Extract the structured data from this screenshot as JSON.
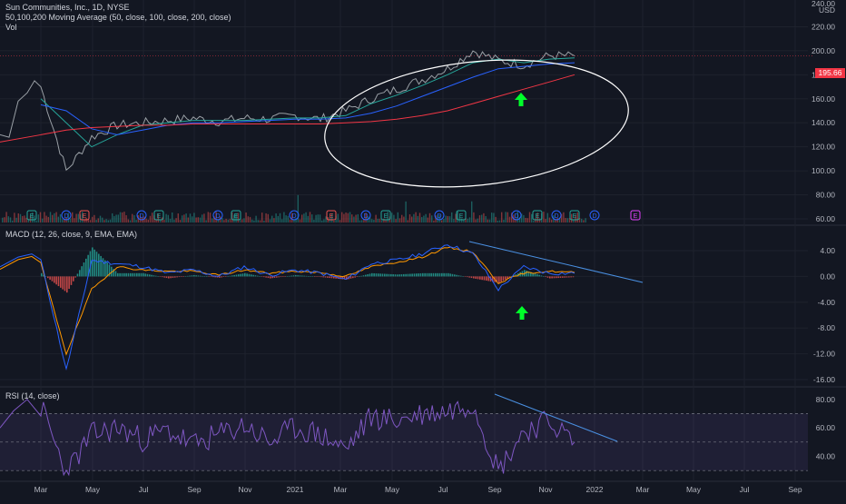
{
  "legend": {
    "title": "Sun Communities, Inc., 1D, NYSE",
    "ma": "50,100,200 Moving Average (50, close, 100, close, 200, close)",
    "vol": "Vol",
    "macd": "MACD (12, 26, close, 9, EMA, EMA)",
    "rsi": "RSI (14, close)"
  },
  "price_axis": {
    "top_label": "240.00",
    "currency": "USD",
    "ticks": [
      "220.00",
      "200.00",
      "180.00",
      "160.00",
      "140.00",
      "120.00",
      "100.00",
      "80.00",
      "60.00"
    ],
    "last_price": "195.66"
  },
  "macd_axis": {
    "ticks": [
      "4.00",
      "0.00",
      "-4.00",
      "-8.00",
      "-12.00",
      "-16.00"
    ]
  },
  "rsi_axis": {
    "ticks": [
      "80.00",
      "60.00",
      "40.00"
    ]
  },
  "time_axis": {
    "labels": [
      "Mar",
      "May",
      "Jul",
      "Sep",
      "Nov",
      "2021",
      "Mar",
      "May",
      "Jul",
      "Sep",
      "Nov",
      "2022",
      "Mar",
      "May",
      "Jul",
      "Sep"
    ]
  },
  "events": [
    "E",
    "D",
    "E",
    "D",
    "E",
    "D",
    "E",
    "D",
    "E",
    "D",
    "E",
    "D",
    "E",
    "D",
    "E",
    "D",
    "E",
    "D",
    "E"
  ],
  "colors": {
    "background": "#131722",
    "price_line": "#9aa0a6",
    "ma50": "#26a69a",
    "ma100": "#2962ff",
    "ma200": "#f23645",
    "macd_line": "#2962ff",
    "signal_line": "#ff9800",
    "hist_up": "#26a69a",
    "hist_down": "#ef5350",
    "rsi_line": "#7e57c2",
    "trendline": "#4a90e2",
    "annotation_arrow": "#00ff2a",
    "ellipse": "#ffffff",
    "last_price_tag": "#f23645"
  },
  "chart_data": [
    {
      "type": "line",
      "title": "Sun Communities, Inc., 1D, NYSE",
      "ylim": [
        60,
        240
      ],
      "x_range": [
        "2020-03",
        "2022-09"
      ],
      "x": [
        "Mar 2020",
        "Apr 2020",
        "May 2020",
        "Jun 2020",
        "Jul 2020",
        "Aug 2020",
        "Sep 2020",
        "Oct 2020",
        "Nov 2020",
        "Dec 2020",
        "Jan 2021",
        "Feb 2021",
        "Mar 2021",
        "Apr 2021",
        "May 2021",
        "Jun 2021",
        "Jul 2021",
        "Aug 2021",
        "Sep 2021",
        "Oct 2021",
        "Nov 2021",
        "Dec 2021"
      ],
      "series": [
        {
          "name": "Close",
          "values": [
            170,
            100,
            128,
            138,
            140,
            142,
            144,
            141,
            144,
            143,
            146,
            143,
            150,
            160,
            168,
            176,
            185,
            200,
            192,
            188,
            196,
            195.66
          ]
        },
        {
          "name": "MA50",
          "values": [
            160,
            140,
            120,
            130,
            138,
            140,
            142,
            142,
            142,
            143,
            144,
            144,
            146,
            156,
            163,
            171,
            180,
            190,
            193,
            190,
            193,
            194
          ]
        },
        {
          "name": "MA100",
          "values": [
            155,
            150,
            135,
            130,
            134,
            138,
            140,
            140,
            141,
            142,
            143,
            143,
            144,
            148,
            154,
            162,
            170,
            178,
            185,
            187,
            189,
            190
          ]
        },
        {
          "name": "MA200",
          "values": [
            130,
            134,
            136,
            137,
            138,
            138,
            139,
            139,
            139,
            139,
            139,
            139,
            140,
            141,
            143,
            146,
            150,
            156,
            162,
            168,
            174,
            180
          ]
        }
      ],
      "grid": true,
      "annotations": [
        "ellipse around 2021 rally",
        "green up arrow near Oct 2021",
        "last price tag 195.66"
      ]
    },
    {
      "type": "line",
      "title": "MACD (12, 26, close, 9, EMA, EMA)",
      "ylim": [
        -16,
        4
      ],
      "x": [
        "Mar 2020",
        "Apr 2020",
        "May 2020",
        "Jun 2020",
        "Jul 2020",
        "Aug 2020",
        "Sep 2020",
        "Oct 2020",
        "Nov 2020",
        "Dec 2020",
        "Jan 2021",
        "Feb 2021",
        "Mar 2021",
        "Apr 2021",
        "May 2021",
        "Jun 2021",
        "Jul 2021",
        "Aug 2021",
        "Sep 2021",
        "Oct 2021",
        "Nov 2021",
        "Dec 2021"
      ],
      "series": [
        {
          "name": "MACD",
          "values": [
            2.5,
            -14.5,
            2.5,
            2.0,
            1.5,
            0.5,
            1.0,
            0.0,
            1.5,
            0.2,
            1.0,
            0.5,
            -0.5,
            2.0,
            2.5,
            3.5,
            5.0,
            3.5,
            -2.0,
            1.5,
            0.5,
            0.5
          ]
        },
        {
          "name": "Signal",
          "values": [
            2.0,
            -12.0,
            -2.0,
            1.5,
            1.0,
            0.8,
            0.8,
            0.2,
            1.0,
            0.5,
            0.8,
            0.6,
            0.0,
            1.5,
            2.2,
            3.0,
            4.5,
            3.8,
            -1.0,
            0.5,
            0.8,
            0.6
          ]
        }
      ],
      "annotations": [
        "descending trendline from Aug 2021 peak",
        "green up arrow near Oct 2021"
      ]
    },
    {
      "type": "line",
      "title": "RSI (14, close)",
      "ylim": [
        25,
        85
      ],
      "bands": [
        70,
        50,
        30
      ],
      "x": [
        "Mar 2020",
        "Apr 2020",
        "May 2020",
        "Jun 2020",
        "Jul 2020",
        "Aug 2020",
        "Sep 2020",
        "Oct 2020",
        "Nov 2020",
        "Dec 2020",
        "Jan 2021",
        "Feb 2021",
        "Mar 2021",
        "Apr 2021",
        "May 2021",
        "Jun 2021",
        "Jul 2021",
        "Aug 2021",
        "Sep 2021",
        "Oct 2021",
        "Nov 2021",
        "Dec 2021"
      ],
      "series": [
        {
          "name": "RSI",
          "values": [
            75,
            28,
            55,
            60,
            52,
            58,
            48,
            55,
            62,
            50,
            60,
            55,
            45,
            68,
            65,
            70,
            72,
            78,
            30,
            58,
            65,
            50
          ]
        }
      ],
      "annotations": [
        "descending trendline from Sep 2021 peak"
      ]
    }
  ]
}
